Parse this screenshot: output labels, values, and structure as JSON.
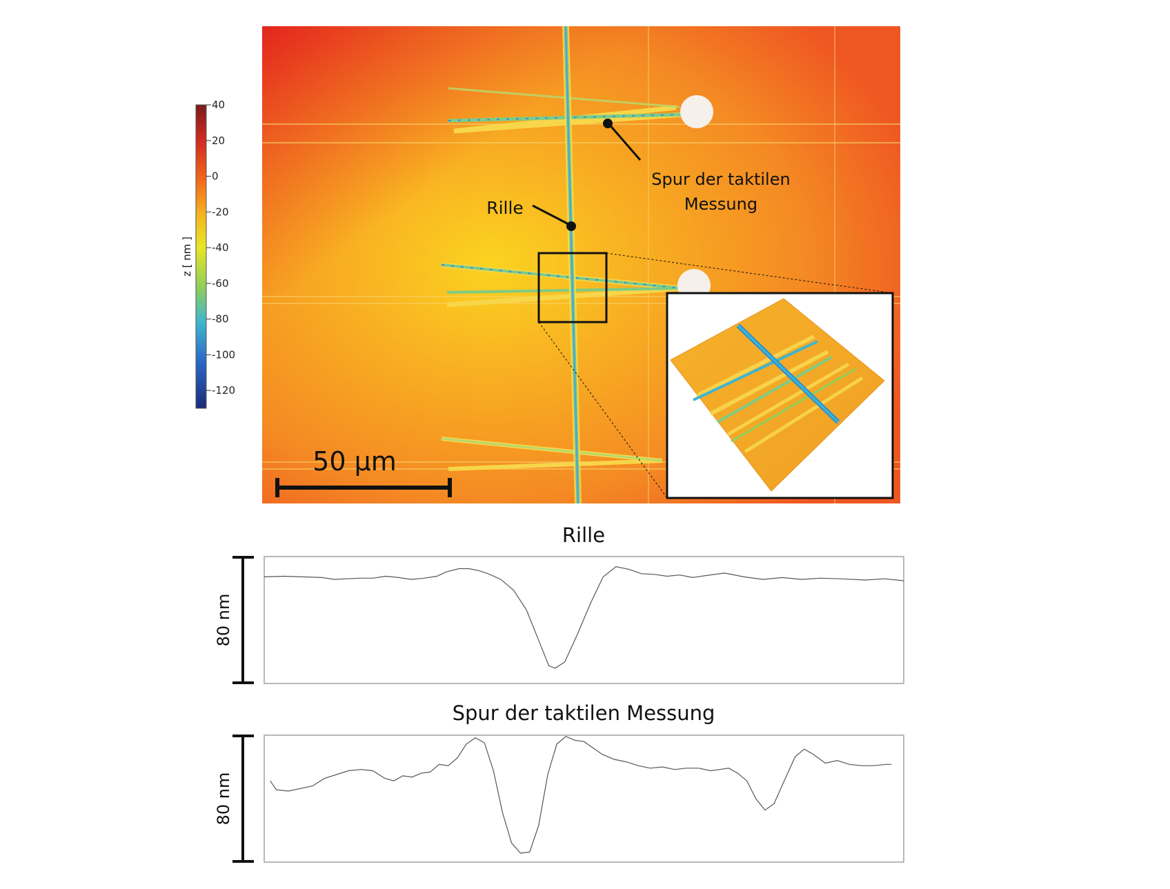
{
  "colorbar": {
    "axis_label": "z [ nm ]",
    "ticks": [
      "40",
      "20",
      "0",
      "-20",
      "-40",
      "-60",
      "-80",
      "-100",
      "-120"
    ],
    "colors": [
      "#7a1a1a",
      "#d42a20",
      "#f26a1c",
      "#f5b820",
      "#e8e625",
      "#8fcf5a",
      "#3fb4d0",
      "#2b66c4",
      "#1b2b7a"
    ]
  },
  "micrograph": {
    "scale_bar_label": "50 µm",
    "annotations": {
      "groove": "Rille",
      "tactile_line1": "Spur der taktilen",
      "tactile_line2": "Messung"
    },
    "inset_icon": "3d-surface-icon"
  },
  "profiles": [
    {
      "title": "Rille",
      "scale_label": "80 nm",
      "profile": [
        [
          0,
          0.84
        ],
        [
          3,
          0.845
        ],
        [
          6,
          0.84
        ],
        [
          9,
          0.835
        ],
        [
          11,
          0.82
        ],
        [
          13,
          0.825
        ],
        [
          15,
          0.83
        ],
        [
          17,
          0.83
        ],
        [
          19,
          0.845
        ],
        [
          21,
          0.835
        ],
        [
          23,
          0.82
        ],
        [
          25,
          0.83
        ],
        [
          27,
          0.845
        ],
        [
          28.5,
          0.88
        ],
        [
          30.5,
          0.905
        ],
        [
          32,
          0.905
        ],
        [
          33.5,
          0.89
        ],
        [
          35,
          0.865
        ],
        [
          37,
          0.82
        ],
        [
          39,
          0.735
        ],
        [
          41,
          0.58
        ],
        [
          43,
          0.33
        ],
        [
          44.5,
          0.14
        ],
        [
          45.5,
          0.12
        ],
        [
          47,
          0.17
        ],
        [
          49,
          0.39
        ],
        [
          51,
          0.63
        ],
        [
          53,
          0.84
        ],
        [
          55,
          0.92
        ],
        [
          57,
          0.9
        ],
        [
          59,
          0.865
        ],
        [
          61,
          0.86
        ],
        [
          63,
          0.845
        ],
        [
          65,
          0.855
        ],
        [
          67,
          0.835
        ],
        [
          69,
          0.85
        ],
        [
          72,
          0.87
        ],
        [
          75,
          0.84
        ],
        [
          78,
          0.82
        ],
        [
          81,
          0.835
        ],
        [
          84,
          0.82
        ],
        [
          87,
          0.83
        ],
        [
          90,
          0.825
        ],
        [
          94,
          0.815
        ],
        [
          97,
          0.825
        ],
        [
          100,
          0.81
        ]
      ]
    },
    {
      "title": "Spur der taktilen Messung",
      "scale_label": "80 nm",
      "profile": [
        [
          1,
          0.64
        ],
        [
          2,
          0.57
        ],
        [
          4,
          0.56
        ],
        [
          6,
          0.58
        ],
        [
          8,
          0.6
        ],
        [
          10,
          0.66
        ],
        [
          12,
          0.69
        ],
        [
          14,
          0.72
        ],
        [
          16,
          0.73
        ],
        [
          18,
          0.72
        ],
        [
          20,
          0.66
        ],
        [
          21.5,
          0.64
        ],
        [
          23,
          0.68
        ],
        [
          24.5,
          0.67
        ],
        [
          26,
          0.7
        ],
        [
          27.5,
          0.71
        ],
        [
          29,
          0.77
        ],
        [
          30.5,
          0.76
        ],
        [
          32,
          0.82
        ],
        [
          33.5,
          0.93
        ],
        [
          35,
          0.98
        ],
        [
          36.5,
          0.94
        ],
        [
          38,
          0.72
        ],
        [
          39.5,
          0.39
        ],
        [
          41,
          0.15
        ],
        [
          42.5,
          0.07
        ],
        [
          44,
          0.08
        ],
        [
          45.5,
          0.29
        ],
        [
          47,
          0.69
        ],
        [
          48.5,
          0.93
        ],
        [
          50,
          0.99
        ],
        [
          51.5,
          0.96
        ],
        [
          53,
          0.95
        ],
        [
          54.5,
          0.9
        ],
        [
          56,
          0.85
        ],
        [
          58,
          0.81
        ],
        [
          60,
          0.79
        ],
        [
          62,
          0.76
        ],
        [
          64,
          0.74
        ],
        [
          66,
          0.75
        ],
        [
          68,
          0.73
        ],
        [
          70,
          0.74
        ],
        [
          72,
          0.74
        ],
        [
          74,
          0.72
        ],
        [
          75.5,
          0.73
        ],
        [
          77,
          0.74
        ],
        [
          78.5,
          0.7
        ],
        [
          80,
          0.64
        ],
        [
          81.5,
          0.5
        ],
        [
          83,
          0.41
        ],
        [
          84.5,
          0.46
        ],
        [
          86,
          0.62
        ],
        [
          88,
          0.83
        ],
        [
          89.5,
          0.89
        ],
        [
          91,
          0.85
        ],
        [
          93,
          0.78
        ],
        [
          95,
          0.8
        ],
        [
          97,
          0.77
        ],
        [
          99,
          0.76
        ],
        [
          101,
          0.76
        ],
        [
          103,
          0.77
        ],
        [
          104,
          0.77
        ]
      ]
    }
  ]
}
